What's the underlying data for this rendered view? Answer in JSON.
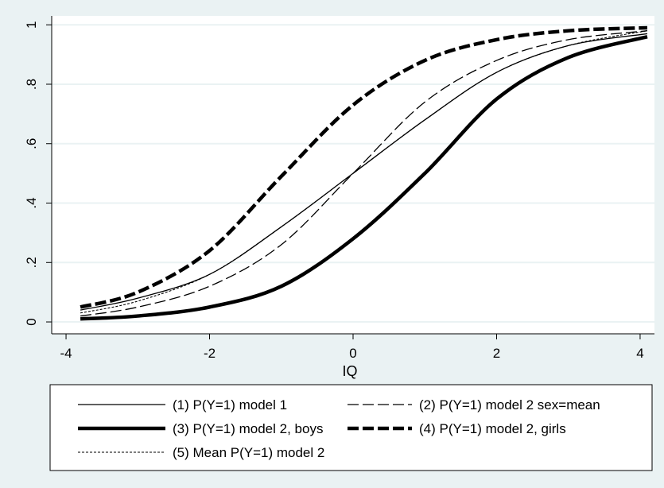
{
  "chart_data": {
    "type": "line",
    "xlabel": "IQ",
    "ylabel": "",
    "xlim": [
      -4.2,
      4.2
    ],
    "ylim": [
      -0.04,
      1.03
    ],
    "xticks": [
      -4,
      -2,
      0,
      2,
      4
    ],
    "xtick_labels": [
      "-4",
      "-2",
      "0",
      "2",
      "4"
    ],
    "yticks": [
      0,
      0.2,
      0.4,
      0.6,
      0.8,
      1
    ],
    "ytick_labels": [
      "0",
      ".2",
      ".4",
      ".6",
      ".8",
      "1"
    ],
    "grid": true,
    "legend_position": "bottom",
    "x_range": [
      -3.8,
      4.1
    ],
    "series": [
      {
        "name": "(1) P(Y=1) model 1",
        "style": "thin-solid",
        "x": [
          -3.8,
          -3,
          -2,
          -1,
          0,
          1,
          2,
          3,
          4.1
        ],
        "y": [
          0.04,
          0.08,
          0.16,
          0.32,
          0.5,
          0.68,
          0.84,
          0.93,
          0.97
        ]
      },
      {
        "name": "(2) P(Y=1) model 2 sex=mean",
        "style": "thin-longdash",
        "x": [
          -3.8,
          -3,
          -2,
          -1,
          0,
          1,
          2,
          3,
          4.1
        ],
        "y": [
          0.02,
          0.05,
          0.12,
          0.26,
          0.5,
          0.74,
          0.88,
          0.95,
          0.98
        ]
      },
      {
        "name": "(3) P(Y=1) model 2, boys",
        "style": "thick-solid",
        "x": [
          -3.8,
          -3,
          -2,
          -1,
          0,
          1,
          2,
          3,
          4.1
        ],
        "y": [
          0.01,
          0.02,
          0.05,
          0.12,
          0.28,
          0.5,
          0.75,
          0.89,
          0.96
        ]
      },
      {
        "name": "(4) P(Y=1) model 2, girls",
        "style": "thick-dash",
        "x": [
          -3.8,
          -3,
          -2,
          -1,
          0,
          1,
          2,
          3,
          4.1
        ],
        "y": [
          0.05,
          0.1,
          0.24,
          0.49,
          0.73,
          0.88,
          0.95,
          0.98,
          0.99
        ]
      },
      {
        "name": "(5) Mean P(Y=1) model 2",
        "style": "thin-shortdash",
        "x": [
          -3.8,
          -3,
          -2,
          -1,
          0,
          1,
          2,
          3,
          4.1
        ],
        "y": [
          0.03,
          0.07,
          0.16,
          0.32,
          0.5,
          0.68,
          0.84,
          0.93,
          0.98
        ]
      }
    ]
  }
}
